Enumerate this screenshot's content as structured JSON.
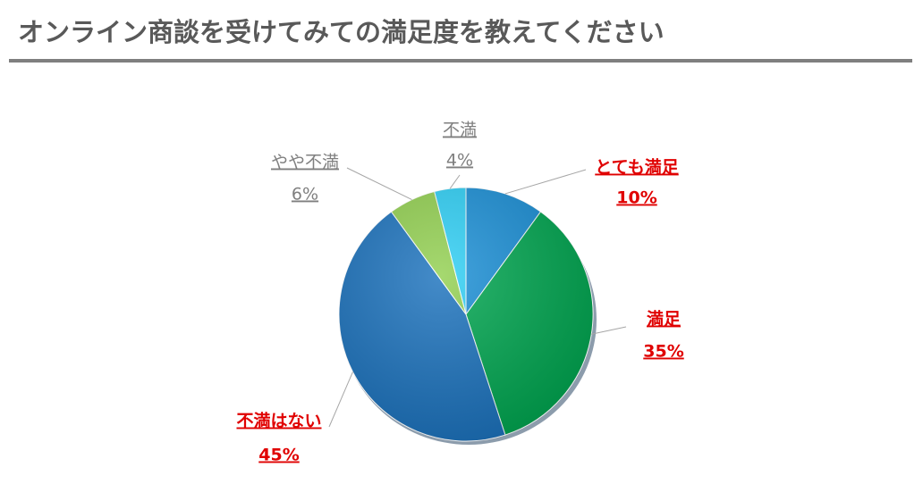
{
  "chart_data": {
    "type": "pie",
    "title": "オンライン商談を受けてみての満足度を教えてください",
    "categories": [
      "とても満足",
      "満足",
      "不満はない",
      "やや不満",
      "不満"
    ],
    "values": [
      10,
      35,
      45,
      6,
      4
    ],
    "value_labels": [
      "10%",
      "35%",
      "45%",
      "6%",
      "4%"
    ],
    "colors": [
      "#1a8fd6",
      "#00a650",
      "#1b72bd",
      "#92d050",
      "#2ecff5"
    ],
    "label_colors": [
      "#e00000",
      "#e00000",
      "#e00000",
      "#7f7f7f",
      "#7f7f7f"
    ]
  }
}
